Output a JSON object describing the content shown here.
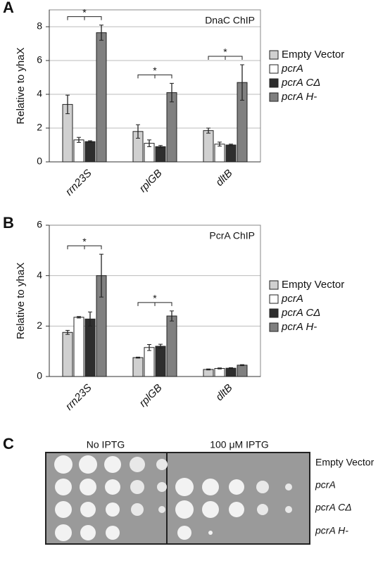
{
  "chart_data": [
    {
      "type": "bar",
      "panel_label": "A",
      "title": "DnaC ChIP",
      "y_label": "Relative to yhaX",
      "categories": [
        "rrn23S",
        "rplGB",
        "dltB"
      ],
      "series": [
        {
          "name": "Empty Vector",
          "color": "#d0d0d0",
          "values": [
            3.4,
            1.8,
            1.85
          ],
          "errors": [
            0.55,
            0.4,
            0.15
          ]
        },
        {
          "name": "pcrA",
          "color": "#ffffff",
          "values": [
            1.3,
            1.1,
            1.05
          ],
          "errors": [
            0.15,
            0.2,
            0.12
          ]
        },
        {
          "name": "pcrA CΔ",
          "color": "#2e2e2e",
          "values": [
            1.2,
            0.9,
            1.0
          ],
          "errors": [
            0.05,
            0.07,
            0.05
          ]
        },
        {
          "name": "pcrA H-",
          "color": "#808080",
          "values": [
            7.65,
            4.1,
            4.7
          ],
          "errors": [
            0.45,
            0.55,
            1.05
          ]
        }
      ],
      "significance": [
        {
          "category": 0,
          "text": "*"
        },
        {
          "category": 1,
          "text": "*"
        },
        {
          "category": 2,
          "text": "*"
        }
      ],
      "ylim": [
        0,
        9
      ],
      "yticks": [
        0,
        2,
        4,
        6,
        8
      ],
      "grid": true
    },
    {
      "type": "bar",
      "panel_label": "B",
      "title": "PcrA ChIP",
      "y_label": "Relative to yhaX",
      "categories": [
        "rrn23S",
        "rplGB",
        "dltB"
      ],
      "series": [
        {
          "name": "Empty Vector",
          "color": "#d0d0d0",
          "values": [
            1.75,
            0.75,
            0.28
          ],
          "errors": [
            0.08,
            0.02,
            0.02
          ]
        },
        {
          "name": "pcrA",
          "color": "#ffffff",
          "values": [
            2.35,
            1.15,
            0.32
          ],
          "errors": [
            0.03,
            0.12,
            0.02
          ]
        },
        {
          "name": "pcrA CΔ",
          "color": "#2e2e2e",
          "values": [
            2.28,
            1.2,
            0.33
          ],
          "errors": [
            0.28,
            0.08,
            0.02
          ]
        },
        {
          "name": "pcrA H-",
          "color": "#808080",
          "values": [
            4.0,
            2.4,
            0.45
          ],
          "errors": [
            0.85,
            0.2,
            0.02
          ]
        }
      ],
      "significance": [
        {
          "category": 0,
          "text": "*"
        },
        {
          "category": 1,
          "text": "*"
        }
      ],
      "ylim": [
        0,
        6
      ],
      "yticks": [
        0,
        2,
        4,
        6
      ],
      "grid": true
    }
  ],
  "panel_c": {
    "panel_label": "C",
    "column_labels": [
      "No IPTG",
      "100 μM IPTG"
    ],
    "row_labels": [
      "Empty Vector",
      "pcrA",
      "pcrA CΔ",
      "pcrA H-"
    ]
  }
}
